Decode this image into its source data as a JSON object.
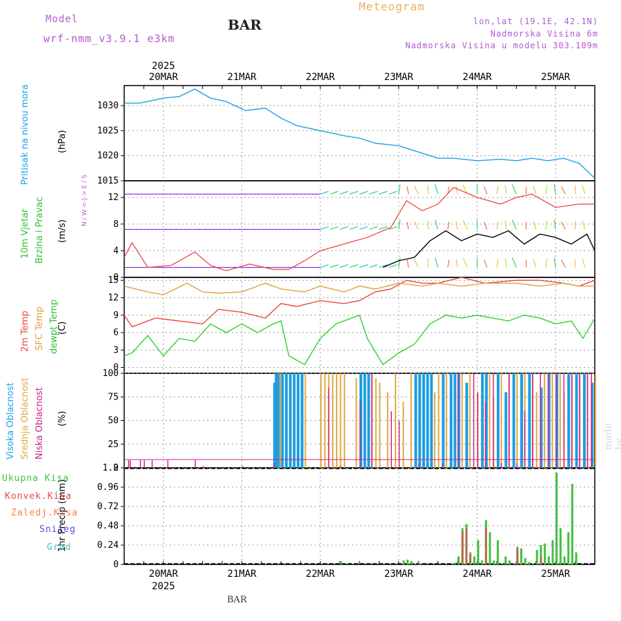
{
  "header": {
    "model_label": "Model",
    "model_name": "wrf-nmm_v3.9.1  e3km",
    "station": "BAR",
    "title": "Meteogram",
    "location": "lon,lat (19.1E, 42.1N)",
    "altitude": "Nadmorska Visina 6m",
    "model_altitude": "Nadmorska Visina u modelu 303.109m"
  },
  "footer": {
    "station": "BAR",
    "credit": "made by Angel"
  },
  "colors": {
    "pressure": "#1ea0e6",
    "temp2m": "#e8483c",
    "sfc": "#e0a040",
    "dewpt": "#30d030",
    "high_cloud": "#1e9ee0",
    "mid_cloud": "#e0a840",
    "low_cloud": "#d0208c",
    "total_precip": "#40c040",
    "conv_precip": "#e04848",
    "frz_precip": "#ff8040",
    "snow": "#5050e0",
    "hail": "#40c0c0",
    "gust": "#e84848",
    "wind_speed": "#000000"
  },
  "chart_data": [
    {
      "type": "line",
      "name": "pressure",
      "ylabel": "Pritisak na nivou mora",
      "unit": "(hPa)",
      "ylim": [
        1015,
        1034
      ],
      "yticks": [
        1015,
        1020,
        1025,
        1030
      ],
      "x_days": [
        0,
        0.2,
        0.5,
        0.7,
        0.9,
        1.1,
        1.3,
        1.55,
        1.8,
        2.0,
        2.2,
        2.5,
        2.8,
        3.0,
        3.2,
        3.5,
        3.8,
        4.0,
        4.2,
        4.5,
        4.8,
        5.0,
        5.2,
        5.4,
        5.6,
        5.8,
        6.0
      ],
      "values": [
        1030.5,
        1030.5,
        1031.5,
        1031.8,
        1033.3,
        1031.5,
        1030.8,
        1029.0,
        1029.5,
        1027.5,
        1026.0,
        1025.0,
        1024.0,
        1023.5,
        1022.5,
        1022.0,
        1020.5,
        1019.5,
        1019.5,
        1019.0,
        1019.3,
        1019.0,
        1019.5,
        1019.0,
        1019.5,
        1018.5,
        1015.5
      ]
    },
    {
      "type": "line",
      "name": "wind",
      "ylabel": "10m Vjetar Brzina i Pravac",
      "unit": "(m/s)",
      "ylim": [
        0,
        14.5
      ],
      "yticks": [
        0,
        4,
        8,
        12
      ],
      "compass": "N / W <-|-> E / S",
      "series": [
        {
          "name": "gust",
          "x_days": [
            0,
            0.1,
            0.3,
            0.6,
            0.9,
            1.1,
            1.3,
            1.6,
            1.9,
            2.1,
            2.3,
            2.5,
            2.8,
            3.1,
            3.4,
            3.6,
            3.8,
            4.0,
            4.2,
            4.5,
            4.8,
            5.0,
            5.2,
            5.5,
            5.8,
            6.0
          ],
          "values": [
            3.0,
            5.2,
            1.5,
            1.8,
            3.8,
            1.8,
            1.0,
            2.0,
            1.2,
            1.2,
            2.5,
            4.0,
            5.0,
            6.0,
            7.5,
            11.5,
            10.0,
            11.0,
            13.5,
            12.0,
            11.0,
            12.0,
            12.5,
            10.5,
            11.0,
            11.0
          ]
        },
        {
          "name": "speed",
          "x_days": [
            3.3,
            3.5,
            3.7,
            3.9,
            4.1,
            4.3,
            4.5,
            4.7,
            4.9,
            5.1,
            5.3,
            5.5,
            5.7,
            5.9,
            6.0
          ],
          "values": [
            1.5,
            2.5,
            3.0,
            5.5,
            7.0,
            5.5,
            6.5,
            6.0,
            7.0,
            5.0,
            6.5,
            6.0,
            5.0,
            6.5,
            4.0
          ]
        }
      ],
      "arrow_rows": [
        12.5,
        7.2,
        1.5
      ]
    },
    {
      "type": "line",
      "name": "temperature",
      "ylabel": "2m Temp / SFC Temp / dewpt Temp",
      "unit": "(C)",
      "ylim": [
        -1,
        15.5
      ],
      "yticks": [
        0,
        3,
        6,
        9,
        12,
        15
      ],
      "series": [
        {
          "name": "2m Temp",
          "x_days": [
            0,
            0.1,
            0.4,
            0.7,
            1.0,
            1.2,
            1.5,
            1.8,
            2.0,
            2.2,
            2.5,
            2.8,
            3.0,
            3.2,
            3.4,
            3.6,
            3.8,
            4.0,
            4.3,
            4.6,
            5.0,
            5.3,
            5.6,
            5.8,
            6.0
          ],
          "values": [
            9.0,
            7.0,
            8.5,
            8.0,
            7.5,
            10.0,
            9.5,
            8.5,
            11.0,
            10.5,
            11.5,
            11.0,
            11.5,
            13.0,
            13.5,
            15.0,
            14.5,
            14.5,
            15.5,
            14.5,
            15.0,
            15.0,
            14.5,
            14.0,
            15.0
          ]
        },
        {
          "name": "SFC Temp",
          "x_days": [
            0,
            0.3,
            0.5,
            0.8,
            1.0,
            1.2,
            1.5,
            1.8,
            2.0,
            2.3,
            2.5,
            2.8,
            3.0,
            3.2,
            3.5,
            3.8,
            4.0,
            4.3,
            4.6,
            5.0,
            5.3,
            5.6,
            5.8,
            6.0
          ],
          "values": [
            14.0,
            13.0,
            12.5,
            14.5,
            13.0,
            12.8,
            13.0,
            14.5,
            13.5,
            13.0,
            14.0,
            13.0,
            14.0,
            13.5,
            14.5,
            14.0,
            14.5,
            14.0,
            14.5,
            14.5,
            14.0,
            14.5,
            14.0,
            14.0
          ]
        },
        {
          "name": "dewpt Temp",
          "x_days": [
            0,
            0.1,
            0.3,
            0.5,
            0.7,
            0.9,
            1.1,
            1.3,
            1.5,
            1.7,
            1.9,
            2.0,
            2.1,
            2.3,
            2.5,
            2.7,
            2.9,
            3.0,
            3.1,
            3.3,
            3.5,
            3.7,
            3.9,
            4.1,
            4.3,
            4.5,
            4.7,
            4.9,
            5.1,
            5.3,
            5.5,
            5.7,
            5.85,
            6.0
          ],
          "values": [
            2.0,
            2.5,
            5.5,
            2.0,
            5.0,
            4.5,
            7.5,
            6.0,
            7.5,
            6.0,
            7.5,
            8.0,
            2.0,
            0.5,
            5.0,
            7.5,
            8.5,
            9.0,
            5.0,
            0.5,
            2.5,
            4.0,
            7.5,
            9.0,
            8.5,
            9.0,
            8.5,
            8.0,
            9.0,
            8.5,
            7.5,
            8.0,
            5.0,
            8.5
          ]
        }
      ]
    },
    {
      "type": "bar",
      "name": "cloud cover",
      "ylabel": "Visoka Oblacnost / Srednja Oblacnost / Niska Oblacnost",
      "unit": "(%)",
      "ylim": [
        0,
        100
      ],
      "yticks": [
        0,
        25,
        50,
        75,
        100
      ],
      "series": [
        {
          "name": "Visoka",
          "x_days": [
            1.9,
            1.92,
            1.95,
            2.0,
            2.05,
            2.1,
            2.15,
            2.2,
            2.25,
            3.0,
            3.05,
            3.1,
            3.7,
            3.75,
            3.8,
            3.85,
            3.9,
            4.05,
            4.15,
            4.2,
            4.25,
            4.35,
            4.55,
            4.6,
            4.75,
            4.85,
            4.95,
            5.05,
            5.15,
            5.3,
            5.4,
            5.5,
            5.65,
            5.75,
            5.85,
            5.95
          ],
          "values": [
            90,
            100,
            100,
            100,
            100,
            100,
            100,
            100,
            100,
            100,
            100,
            100,
            100,
            100,
            100,
            100,
            100,
            100,
            100,
            100,
            100,
            90,
            100,
            100,
            100,
            80,
            100,
            100,
            100,
            85,
            100,
            100,
            100,
            100,
            100,
            90
          ]
        },
        {
          "name": "Srednja",
          "x_days": [
            1.98,
            2.3,
            2.5,
            2.55,
            2.6,
            2.65,
            2.7,
            2.75,
            2.8,
            2.95,
            3.15,
            3.2,
            3.25,
            3.35,
            3.45,
            3.55,
            3.65,
            3.95,
            4.0,
            4.1,
            4.3,
            4.4,
            4.5,
            4.65,
            4.7,
            4.8,
            4.9,
            5.0,
            5.1,
            5.2,
            5.25,
            5.35,
            5.45,
            5.55,
            5.6,
            5.7,
            5.8,
            5.9,
            6.0
          ],
          "values": [
            100,
            100,
            100,
            100,
            100,
            100,
            100,
            100,
            100,
            95,
            100,
            95,
            90,
            80,
            100,
            70,
            100,
            80,
            100,
            100,
            100,
            100,
            80,
            100,
            75,
            100,
            100,
            100,
            100,
            100,
            80,
            100,
            100,
            100,
            80,
            100,
            100,
            100,
            100
          ]
        },
        {
          "name": "Niska",
          "x_days": [
            0.05,
            0.07,
            0.2,
            0.25,
            0.35,
            0.55,
            0.9,
            1.0,
            1.5,
            1.9,
            2.6,
            2.75,
            3.0,
            3.15,
            3.4,
            3.5,
            3.75,
            4.05,
            4.25,
            4.45,
            4.5,
            4.6,
            4.7,
            4.8,
            4.9,
            5.0,
            5.1,
            5.2,
            5.3,
            5.4,
            5.5,
            5.6,
            5.7,
            5.8,
            5.9,
            5.95
          ],
          "values": [
            8,
            8,
            8,
            8,
            8,
            8,
            8,
            2,
            2,
            5,
            85,
            2,
            70,
            100,
            60,
            50,
            5,
            5,
            100,
            100,
            80,
            70,
            100,
            5,
            100,
            5,
            60,
            100,
            100,
            100,
            100,
            100,
            100,
            100,
            100,
            100
          ]
        }
      ]
    },
    {
      "type": "bar",
      "name": "precipitation",
      "ylabel": "1hr Precip",
      "unit": "(mm)",
      "ylim": [
        0,
        1.2
      ],
      "yticks": [
        0,
        0.24,
        0.48,
        0.72,
        0.96,
        1.2
      ],
      "legend": [
        "Ukupna Kisa",
        "Konvek.Kisa",
        "Zaledj.Kisa",
        "Snijeg",
        "Grad"
      ],
      "series": [
        {
          "name": "Ukupna Kisa",
          "x_days": [
            2.75,
            3.55,
            3.6,
            3.65,
            3.75,
            4.2,
            4.25,
            4.3,
            4.35,
            4.4,
            4.45,
            4.5,
            4.55,
            4.6,
            4.65,
            4.7,
            4.75,
            4.85,
            4.9,
            5.0,
            5.05,
            5.1,
            5.15,
            5.25,
            5.3,
            5.35,
            5.4,
            5.45,
            5.5,
            5.55,
            5.6,
            5.65,
            5.7,
            5.75
          ],
          "values": [
            0.04,
            0.05,
            0.06,
            0.04,
            0.02,
            0.02,
            0.1,
            0.45,
            0.5,
            0.15,
            0.1,
            0.3,
            0.05,
            0.55,
            0.4,
            0.05,
            0.3,
            0.1,
            0.05,
            0.22,
            0.2,
            0.08,
            0.03,
            0.18,
            0.24,
            0.26,
            0.1,
            0.3,
            1.14,
            0.45,
            0.1,
            0.4,
            1.0,
            0.15
          ]
        },
        {
          "name": "Konvek.Kisa",
          "x_days": [
            4.3,
            4.35,
            4.4,
            4.6,
            5.0,
            5.3
          ],
          "values": [
            0.4,
            0.45,
            0.12,
            0.45,
            0.2,
            0.1
          ]
        }
      ]
    }
  ],
  "x_axis": {
    "start_day": 19.5,
    "end_day": 25.5,
    "tick_labels": [
      "20MAR",
      "21MAR",
      "22MAR",
      "23MAR",
      "24MAR",
      "25MAR"
    ],
    "tick_days": [
      0.5,
      1.5,
      2.5,
      3.5,
      4.5,
      5.5
    ],
    "year": "2025"
  }
}
